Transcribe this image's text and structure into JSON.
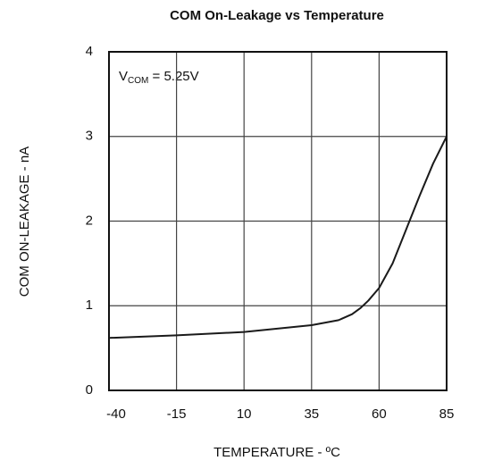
{
  "chart_data": {
    "type": "line",
    "title": "COM On-Leakage vs Temperature",
    "x_label": "TEMPERATURE - ºC",
    "y_label": "COM ON-LEAKAGE - nA",
    "annotation": {
      "main": "V",
      "subscript": "COM",
      "rest": " = 5.25V"
    },
    "x": [
      -40,
      -15,
      10,
      35,
      45,
      50,
      53,
      56,
      60,
      65,
      70,
      75,
      80,
      85
    ],
    "series": [
      {
        "name": "COM On-Leakage",
        "color": "#1a1a1a",
        "values": [
          0.62,
          0.65,
          0.69,
          0.77,
          0.83,
          0.9,
          0.97,
          1.06,
          1.21,
          1.5,
          1.9,
          2.3,
          2.68,
          3.0
        ]
      }
    ],
    "xlim": [
      -40,
      85
    ],
    "xticks": [
      -40,
      -15,
      10,
      35,
      60,
      85
    ],
    "ylim": [
      0,
      4
    ],
    "yticks": [
      0,
      1,
      2,
      3,
      4
    ],
    "grid": true
  }
}
